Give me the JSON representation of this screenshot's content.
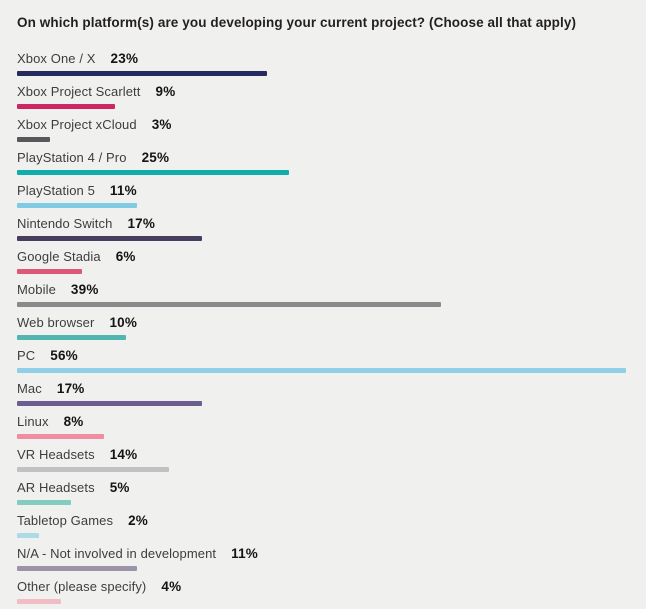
{
  "chart_data": {
    "type": "bar",
    "orientation": "horizontal",
    "title": "On which platform(s) are you developing your current project? (Choose all that apply)",
    "categories": [
      "Xbox One / X",
      "Xbox Project Scarlett",
      "Xbox Project xCloud",
      "PlayStation 4 / Pro",
      "PlayStation 5",
      "Nintendo Switch",
      "Google Stadia",
      "Mobile",
      "Web browser",
      "PC",
      "Mac",
      "Linux",
      "VR Headsets",
      "AR Headsets",
      "Tabletop Games",
      "N/A - Not involved in development",
      "Other (please specify)"
    ],
    "values": [
      23,
      9,
      3,
      25,
      11,
      17,
      6,
      39,
      10,
      56,
      17,
      8,
      14,
      5,
      2,
      11,
      4
    ],
    "value_labels": [
      "23%",
      "9%",
      "3%",
      "25%",
      "11%",
      "17%",
      "6%",
      "39%",
      "10%",
      "56%",
      "17%",
      "8%",
      "14%",
      "5%",
      "2%",
      "11%",
      "4%"
    ],
    "bar_colors": [
      "#262a5c",
      "#ce2665",
      "#58585a",
      "#0faeaa",
      "#7ecbe3",
      "#473d5f",
      "#dd5779",
      "#8a8a8d",
      "#52b5b0",
      "#8fd0e8",
      "#6a5f8e",
      "#f08da2",
      "#c1c1c3",
      "#82ccc0",
      "#aedae6",
      "#9b93a8",
      "#f2bcc4"
    ],
    "xlim": [
      0,
      56
    ],
    "unit": "%",
    "grid": false,
    "legend": false
  },
  "colors": {
    "background": "#f0f1ef",
    "title_text": "#231f20",
    "label_text": "#3d3d3f",
    "value_text": "#141414"
  }
}
